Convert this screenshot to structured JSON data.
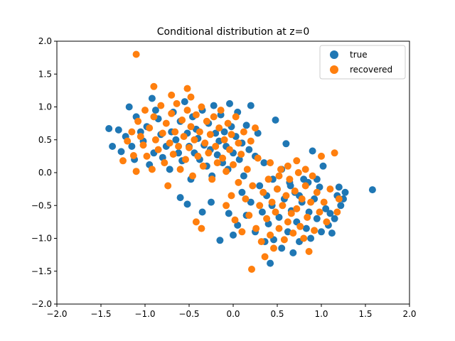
{
  "chart_data": {
    "type": "scatter",
    "title": "Conditional distribution at z=0",
    "xlabel": "",
    "ylabel": "",
    "xlim": [
      -2.0,
      2.0
    ],
    "ylim": [
      -2.0,
      2.0
    ],
    "xticks": [
      -2.0,
      -1.5,
      -1.0,
      -0.5,
      0.0,
      0.5,
      1.0,
      1.5,
      2.0
    ],
    "yticks": [
      -2.0,
      -1.5,
      -1.0,
      -0.5,
      0.0,
      0.5,
      1.0,
      1.5,
      2.0
    ],
    "xtick_labels": [
      "−2.0",
      "−1.5",
      "−1.0",
      "−0.5",
      "0.0",
      "0.5",
      "1.0",
      "1.5",
      "2.0"
    ],
    "ytick_labels": [
      "−2.0",
      "−1.5",
      "−1.0",
      "−0.5",
      "0.0",
      "0.5",
      "1.0",
      "1.5",
      "2.0"
    ],
    "grid": false,
    "legend_position": "top-right",
    "series": [
      {
        "name": "true",
        "color": "#1f77b4",
        "points": [
          [
            -1.41,
            0.67
          ],
          [
            -1.37,
            0.4
          ],
          [
            -1.3,
            0.65
          ],
          [
            -1.27,
            0.32
          ],
          [
            -1.22,
            0.55
          ],
          [
            -1.18,
            1.0
          ],
          [
            -1.15,
            0.4
          ],
          [
            -1.12,
            0.2
          ],
          [
            -1.1,
            0.85
          ],
          [
            -1.05,
            0.62
          ],
          [
            -1.02,
            0.48
          ],
          [
            -0.98,
            0.7
          ],
          [
            -0.95,
            0.12
          ],
          [
            -0.92,
            1.13
          ],
          [
            -0.9,
            0.3
          ],
          [
            -0.88,
            0.95
          ],
          [
            -0.85,
            0.82
          ],
          [
            -0.82,
            0.58
          ],
          [
            -0.8,
            0.23
          ],
          [
            -0.76,
            0.4
          ],
          [
            -0.72,
            0.05
          ],
          [
            -0.7,
            0.62
          ],
          [
            -0.68,
            0.92
          ],
          [
            -0.65,
            0.5
          ],
          [
            -0.62,
            0.3
          ],
          [
            -0.6,
            0.78
          ],
          [
            -0.58,
            0.18
          ],
          [
            -0.55,
            1.08
          ],
          [
            -0.52,
            0.6
          ],
          [
            -0.5,
            0.4
          ],
          [
            -0.48,
            -0.1
          ],
          [
            -0.46,
            0.85
          ],
          [
            -0.44,
            0.3
          ],
          [
            -0.42,
            0.66
          ],
          [
            -0.4,
            0.52
          ],
          [
            -0.38,
            0.2
          ],
          [
            -0.35,
            0.95
          ],
          [
            -0.33,
            0.42
          ],
          [
            -0.3,
            0.1
          ],
          [
            -0.28,
            0.75
          ],
          [
            -0.26,
            0.35
          ],
          [
            -0.24,
            -0.05
          ],
          [
            -0.22,
            1.02
          ],
          [
            -0.2,
            0.6
          ],
          [
            -0.18,
            0.27
          ],
          [
            -0.16,
            0.48
          ],
          [
            -0.14,
            0.88
          ],
          [
            -0.12,
            0.15
          ],
          [
            -0.1,
            0.62
          ],
          [
            -0.08,
            0.4
          ],
          [
            -0.06,
            0.05
          ],
          [
            -0.04,
            1.05
          ],
          [
            -0.02,
            0.7
          ],
          [
            0.0,
            0.3
          ],
          [
            0.03,
            0.55
          ],
          [
            0.05,
            0.92
          ],
          [
            0.07,
            0.2
          ],
          [
            0.1,
            0.45
          ],
          [
            0.12,
            -0.05
          ],
          [
            0.15,
            0.72
          ],
          [
            0.18,
            0.35
          ],
          [
            0.2,
            1.02
          ],
          [
            0.25,
            0.25
          ],
          [
            0.28,
            0.6
          ],
          [
            -0.6,
            -0.38
          ],
          [
            -0.52,
            -0.48
          ],
          [
            -0.35,
            -0.6
          ],
          [
            -0.25,
            -0.45
          ],
          [
            -0.15,
            -1.03
          ],
          [
            -0.05,
            -0.62
          ],
          [
            0.0,
            -0.95
          ],
          [
            0.05,
            -0.8
          ],
          [
            0.1,
            -0.3
          ],
          [
            0.15,
            -0.65
          ],
          [
            0.2,
            -0.45
          ],
          [
            0.25,
            -0.9
          ],
          [
            0.3,
            -0.2
          ],
          [
            0.33,
            -0.6
          ],
          [
            0.36,
            -1.05
          ],
          [
            0.38,
            -0.35
          ],
          [
            0.4,
            -0.78
          ],
          [
            0.42,
            -1.38
          ],
          [
            0.44,
            -0.5
          ],
          [
            0.46,
            -1.02
          ],
          [
            0.48,
            0.8
          ],
          [
            0.5,
            -0.25
          ],
          [
            0.52,
            -0.68
          ],
          [
            0.55,
            -1.15
          ],
          [
            0.58,
            -0.4
          ],
          [
            0.6,
            0.44
          ],
          [
            0.62,
            -0.9
          ],
          [
            0.64,
            -0.15
          ],
          [
            0.66,
            -0.58
          ],
          [
            0.68,
            -1.22
          ],
          [
            0.7,
            -0.3
          ],
          [
            0.72,
            -0.75
          ],
          [
            0.75,
            -1.05
          ],
          [
            0.78,
            -0.45
          ],
          [
            0.8,
            -0.1
          ],
          [
            0.83,
            -0.85
          ],
          [
            0.86,
            -0.6
          ],
          [
            0.88,
            -1.0
          ],
          [
            0.9,
            0.33
          ],
          [
            0.92,
            -0.4
          ],
          [
            0.95,
            -0.7
          ],
          [
            0.98,
            -0.22
          ],
          [
            1.0,
            -0.9
          ],
          [
            1.02,
            0.1
          ],
          [
            1.05,
            -0.55
          ],
          [
            1.08,
            -0.8
          ],
          [
            1.1,
            -0.62
          ],
          [
            1.12,
            -0.92
          ],
          [
            1.15,
            -0.7
          ],
          [
            1.18,
            -0.35
          ],
          [
            1.2,
            -0.22
          ],
          [
            1.22,
            -0.5
          ],
          [
            1.25,
            -0.4
          ],
          [
            1.27,
            -0.3
          ],
          [
            1.58,
            -0.26
          ],
          [
            0.35,
            0.15
          ],
          [
            0.45,
            -0.1
          ],
          [
            0.55,
            0.05
          ],
          [
            0.65,
            -0.2
          ],
          [
            0.75,
            -0.35
          ],
          [
            0.85,
            -0.15
          ],
          [
            0.95,
            -0.1
          ]
        ]
      },
      {
        "name": "recovered",
        "color": "#ff7f0e",
        "points": [
          [
            -1.1,
            1.8
          ],
          [
            -0.9,
            1.31
          ],
          [
            -0.7,
            1.18
          ],
          [
            -0.52,
            1.28
          ],
          [
            -0.48,
            1.15
          ],
          [
            -1.25,
            0.18
          ],
          [
            -1.2,
            0.48
          ],
          [
            -1.15,
            0.62
          ],
          [
            -1.13,
            0.26
          ],
          [
            -1.1,
            0.02
          ],
          [
            -1.08,
            0.78
          ],
          [
            -1.05,
            0.55
          ],
          [
            -1.02,
            0.42
          ],
          [
            -1.0,
            0.95
          ],
          [
            -0.98,
            0.25
          ],
          [
            -0.95,
            0.68
          ],
          [
            -0.92,
            0.05
          ],
          [
            -0.9,
            0.85
          ],
          [
            -0.88,
            0.5
          ],
          [
            -0.85,
            0.35
          ],
          [
            -0.82,
            1.02
          ],
          [
            -0.8,
            0.6
          ],
          [
            -0.78,
            0.15
          ],
          [
            -0.76,
            0.75
          ],
          [
            -0.74,
            -0.2
          ],
          [
            -0.72,
            0.45
          ],
          [
            -0.7,
            0.9
          ],
          [
            -0.68,
            0.28
          ],
          [
            -0.66,
            0.62
          ],
          [
            -0.64,
            1.05
          ],
          [
            -0.62,
            0.4
          ],
          [
            -0.6,
            0.05
          ],
          [
            -0.58,
            0.8
          ],
          [
            -0.56,
            0.55
          ],
          [
            -0.54,
            0.2
          ],
          [
            -0.52,
            0.95
          ],
          [
            -0.5,
            0.38
          ],
          [
            -0.48,
            0.7
          ],
          [
            -0.46,
            -0.05
          ],
          [
            -0.44,
            0.5
          ],
          [
            -0.42,
            0.88
          ],
          [
            -0.4,
            0.25
          ],
          [
            -0.38,
            0.62
          ],
          [
            -0.36,
            1.0
          ],
          [
            -0.34,
            0.1
          ],
          [
            -0.32,
            0.45
          ],
          [
            -0.3,
            0.78
          ],
          [
            -0.28,
            0.3
          ],
          [
            -0.26,
            0.58
          ],
          [
            -0.24,
            -0.1
          ],
          [
            -0.22,
            0.85
          ],
          [
            -0.2,
            0.4
          ],
          [
            -0.18,
            0.15
          ],
          [
            -0.16,
            0.68
          ],
          [
            -0.14,
            0.95
          ],
          [
            -0.12,
            0.22
          ],
          [
            -0.1,
            0.5
          ],
          [
            -0.08,
            0.02
          ],
          [
            -0.06,
            0.75
          ],
          [
            -0.04,
            0.35
          ],
          [
            -0.02,
            0.58
          ],
          [
            0.0,
            0.12
          ],
          [
            0.03,
            0.85
          ],
          [
            0.06,
            0.45
          ],
          [
            0.09,
            0.28
          ],
          [
            0.12,
            0.62
          ],
          [
            0.16,
            0.05
          ],
          [
            0.2,
            0.48
          ],
          [
            0.25,
            0.68
          ],
          [
            0.28,
            0.22
          ],
          [
            -0.42,
            -0.75
          ],
          [
            -0.36,
            -0.85
          ],
          [
            -0.08,
            -0.5
          ],
          [
            -0.02,
            -0.35
          ],
          [
            0.02,
            -0.72
          ],
          [
            0.06,
            -0.15
          ],
          [
            0.1,
            -0.9
          ],
          [
            0.14,
            -0.4
          ],
          [
            0.18,
            -0.65
          ],
          [
            0.21,
            -1.47
          ],
          [
            0.22,
            -0.2
          ],
          [
            0.26,
            -0.85
          ],
          [
            0.3,
            -0.5
          ],
          [
            0.32,
            -1.05
          ],
          [
            0.34,
            -0.3
          ],
          [
            0.36,
            -1.28
          ],
          [
            0.38,
            -0.7
          ],
          [
            0.4,
            -0.1
          ],
          [
            0.42,
            -0.95
          ],
          [
            0.44,
            -0.45
          ],
          [
            0.46,
            -1.15
          ],
          [
            0.48,
            -0.6
          ],
          [
            0.5,
            -0.25
          ],
          [
            0.52,
            -0.85
          ],
          [
            0.54,
            0.05
          ],
          [
            0.56,
            -0.5
          ],
          [
            0.58,
            -1.02
          ],
          [
            0.6,
            -0.35
          ],
          [
            0.62,
            -0.75
          ],
          [
            0.64,
            -0.1
          ],
          [
            0.66,
            -0.62
          ],
          [
            0.68,
            -0.92
          ],
          [
            0.7,
            -0.28
          ],
          [
            0.72,
            -0.55
          ],
          [
            0.74,
            0.0
          ],
          [
            0.76,
            -0.82
          ],
          [
            0.78,
            -0.4
          ],
          [
            0.8,
            -1.0
          ],
          [
            0.82,
            -0.2
          ],
          [
            0.84,
            -0.68
          ],
          [
            0.86,
            -1.2
          ],
          [
            0.88,
            -0.45
          ],
          [
            0.9,
            -0.05
          ],
          [
            0.92,
            -0.88
          ],
          [
            0.95,
            -0.3
          ],
          [
            0.98,
            -0.6
          ],
          [
            1.0,
            0.25
          ],
          [
            1.03,
            -0.45
          ],
          [
            1.06,
            -0.75
          ],
          [
            1.1,
            -0.25
          ],
          [
            1.15,
            0.3
          ],
          [
            1.18,
            -0.6
          ],
          [
            1.2,
            -0.4
          ],
          [
            0.42,
            0.15
          ],
          [
            0.52,
            -0.05
          ],
          [
            0.62,
            0.1
          ],
          [
            0.72,
            0.18
          ],
          [
            0.82,
            0.05
          ]
        ]
      }
    ]
  }
}
